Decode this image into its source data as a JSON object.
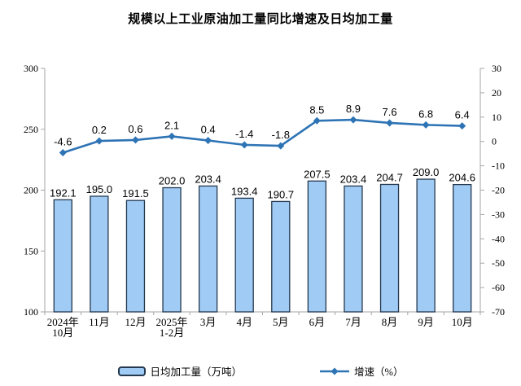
{
  "chart_data": {
    "type": "combo-bar-line",
    "title": "规模以上工业原油加工量同比增速及日均加工量",
    "categories": [
      "2024年\n10月",
      "11月",
      "12月",
      "2025年\n1-2月",
      "3月",
      "4月",
      "5月",
      "6月",
      "7月",
      "8月",
      "9月",
      "10月"
    ],
    "series": [
      {
        "name": "日均加工量（万吨）",
        "type": "bar",
        "axis": "left",
        "values": [
          192.1,
          195.0,
          191.5,
          202.0,
          203.4,
          193.4,
          190.7,
          207.5,
          203.4,
          204.7,
          209.0,
          204.6
        ]
      },
      {
        "name": "增速（%）",
        "type": "line",
        "axis": "right",
        "values": [
          -4.6,
          0.2,
          0.6,
          2.1,
          0.4,
          -1.4,
          -1.8,
          8.5,
          8.9,
          7.6,
          6.8,
          6.4
        ]
      }
    ],
    "left_axis": {
      "min": 100,
      "max": 300,
      "ticks": [
        100,
        150,
        200,
        250,
        300
      ]
    },
    "right_axis": {
      "min": -70,
      "max": 30,
      "ticks": [
        -70,
        -60,
        -50,
        -40,
        -30,
        -20,
        -10,
        0,
        10,
        20,
        30
      ]
    },
    "legend_position": "bottom",
    "grid": false,
    "colors": {
      "bar_fill": "#A0CBF5",
      "bar_border": "#24384E",
      "line": "#2E74B5",
      "axis": "#A6A6A6",
      "text": "#000000"
    }
  }
}
